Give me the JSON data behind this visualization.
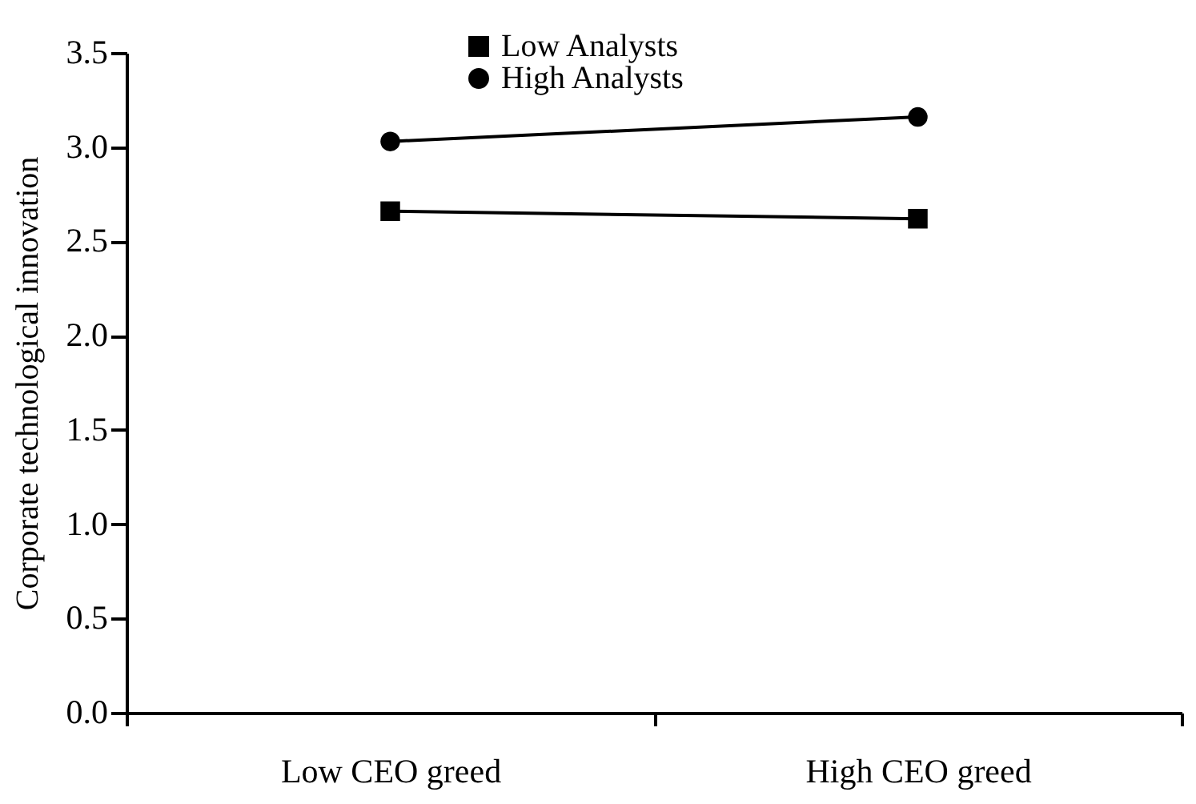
{
  "chart_data": {
    "type": "line",
    "xlabel": null,
    "ylabel": "Corporate technological innovation",
    "categories": [
      "Low CEO greed",
      "High CEO greed"
    ],
    "series": [
      {
        "name": "Low Analysts",
        "color": "#000000",
        "marker": "square",
        "values": [
          2.66,
          2.62
        ]
      },
      {
        "name": "High Analysts",
        "color": "#000000",
        "marker": "circle",
        "values": [
          3.03,
          3.16
        ]
      }
    ],
    "ylim": [
      0,
      3.5
    ],
    "yticks": [
      {
        "value": 0,
        "label": "0.0"
      },
      0.5,
      {
        "value": 1,
        "label": "1.0"
      },
      1.5,
      {
        "value": 2,
        "label": "2.0"
      },
      2.5,
      {
        "value": 3,
        "label": "3.0"
      },
      3.5
    ],
    "grid": false,
    "legend": "top left"
  }
}
